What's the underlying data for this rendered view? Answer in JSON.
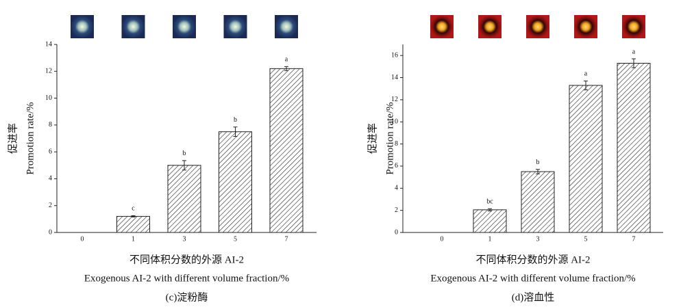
{
  "chart_data": [
    {
      "type": "bar",
      "categories": [
        "0",
        "1",
        "3",
        "5",
        "7"
      ],
      "values": [
        0,
        1.2,
        5.0,
        7.5,
        12.2
      ],
      "errors": [
        0,
        0.05,
        0.35,
        0.35,
        0.15
      ],
      "letters": [
        null,
        "c",
        "b",
        "b",
        "a"
      ],
      "ylim": [
        0,
        14
      ],
      "yticks": [
        0,
        2,
        4,
        6,
        8,
        10,
        12,
        14
      ],
      "ylabel_cn": "促进率",
      "ylabel_en": "Promotion rate/%",
      "xlabel_cn": "不同体积分数的外源 AI-2",
      "xlabel_en": "Exogenous AI-2 with different volume fraction/%",
      "caption": "(c)淀粉酶"
    },
    {
      "type": "bar",
      "categories": [
        "0",
        "1",
        "3",
        "5",
        "7"
      ],
      "values": [
        0,
        2.05,
        5.5,
        13.3,
        15.3
      ],
      "errors": [
        0,
        0.1,
        0.2,
        0.4,
        0.4
      ],
      "letters": [
        null,
        "bc",
        "b",
        "a",
        "a"
      ],
      "ylim": [
        0,
        17
      ],
      "yticks": [
        0,
        2,
        4,
        6,
        8,
        10,
        12,
        14,
        16
      ],
      "ylabel_cn": "促进率",
      "ylabel_en": "Promotion rate/%",
      "xlabel_cn": "不同体积分数的外源 AI-2",
      "xlabel_en": "Exogenous AI-2 with different volume fraction/%",
      "caption": "(d)溶血性"
    }
  ]
}
